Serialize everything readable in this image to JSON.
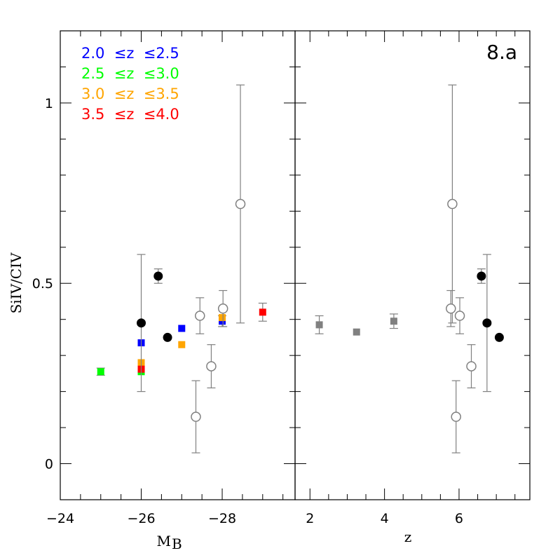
{
  "chart_data": [
    {
      "type": "scatter",
      "panel": "left",
      "title": "",
      "xlabel": "M",
      "xlabel_subscript": "B",
      "ylabel": "SiIV/CIV",
      "xlim": [
        -24,
        -29.8
      ],
      "ylim": [
        -0.1,
        1.2
      ],
      "x_ticks": [
        -24,
        -26,
        -28
      ],
      "x_tick_labels": [
        "−24",
        "−26",
        "−28"
      ],
      "y_ticks": [
        0,
        0.5,
        1
      ],
      "y_tick_labels": [
        "0",
        "0.5",
        "1"
      ],
      "legend": {
        "placement": "top-left",
        "entries": [
          {
            "label": "2.0  ≤z  ≤2.5",
            "color": "#0000ff"
          },
          {
            "label": "2.5  ≤z  ≤3.0",
            "color": "#00ff00"
          },
          {
            "label": "3.0  ≤z  ≤3.5",
            "color": "#ffa500"
          },
          {
            "label": "3.5  ≤z  ≤4.0",
            "color": "#ff0000"
          }
        ]
      },
      "series": [
        {
          "marker": "square",
          "color": "#0000ff",
          "points": [
            {
              "x": -26.0,
              "y": 0.335
            },
            {
              "x": -27.0,
              "y": 0.375
            },
            {
              "x": -28.0,
              "y": 0.395,
              "err": 0.015
            }
          ]
        },
        {
          "marker": "square",
          "color": "#00ff00",
          "points": [
            {
              "x": -25.0,
              "y": 0.255,
              "err": 0.01
            },
            {
              "x": -26.0,
              "y": 0.255
            }
          ]
        },
        {
          "marker": "square",
          "color": "#ffa500",
          "points": [
            {
              "x": -26.0,
              "y": 0.28
            },
            {
              "x": -27.0,
              "y": 0.33
            },
            {
              "x": -28.0,
              "y": 0.405
            }
          ]
        },
        {
          "marker": "square",
          "color": "#ff0000",
          "points": [
            {
              "x": -26.0,
              "y": 0.262
            },
            {
              "x": -29.0,
              "y": 0.42,
              "err": 0.025
            }
          ]
        },
        {
          "marker": "filled-circle",
          "color": "#000000",
          "points": [
            {
              "x": -26.0,
              "y": 0.39,
              "err_lo": 0.19,
              "err_hi": 0.19
            },
            {
              "x": -26.42,
              "y": 0.52,
              "err_lo": 0.02,
              "err_hi": 0.02
            },
            {
              "x": -26.65,
              "y": 0.35
            }
          ]
        },
        {
          "marker": "open-circle",
          "color": "#808080",
          "points": [
            {
              "x": -27.35,
              "y": 0.13,
              "err_lo": 0.1,
              "err_hi": 0.1
            },
            {
              "x": -27.45,
              "y": 0.41,
              "err_lo": 0.05,
              "err_hi": 0.05
            },
            {
              "x": -27.73,
              "y": 0.27,
              "err_lo": 0.06,
              "err_hi": 0.06
            },
            {
              "x": -28.02,
              "y": 0.43,
              "err_lo": 0.05,
              "err_hi": 0.05
            },
            {
              "x": -28.45,
              "y": 0.72,
              "err_lo": 0.33,
              "err_hi": 0.33
            }
          ]
        }
      ]
    },
    {
      "type": "scatter",
      "panel": "right",
      "title": "8.a",
      "xlabel": "z",
      "ylabel": "",
      "xlim": [
        1.6,
        7.9
      ],
      "ylim": [
        -0.1,
        1.2
      ],
      "x_ticks": [
        2,
        4,
        6
      ],
      "x_tick_labels": [
        "2",
        "4",
        "6"
      ],
      "series": [
        {
          "marker": "square",
          "color": "#808080",
          "points": [
            {
              "x": 2.25,
              "y": 0.385,
              "err": 0.025
            },
            {
              "x": 3.25,
              "y": 0.365
            },
            {
              "x": 4.25,
              "y": 0.395,
              "err": 0.02
            }
          ]
        },
        {
          "marker": "filled-circle",
          "color": "#000000",
          "points": [
            {
              "x": 6.6,
              "y": 0.52,
              "err_lo": 0.02,
              "err_hi": 0.02
            },
            {
              "x": 6.75,
              "y": 0.39,
              "err_lo": 0.19,
              "err_hi": 0.19
            },
            {
              "x": 7.08,
              "y": 0.35
            }
          ]
        },
        {
          "marker": "open-circle",
          "color": "#808080",
          "points": [
            {
              "x": 5.82,
              "y": 0.72,
              "err_lo": 0.33,
              "err_hi": 0.33
            },
            {
              "x": 5.78,
              "y": 0.43,
              "err_lo": 0.05,
              "err_hi": 0.05
            },
            {
              "x": 6.02,
              "y": 0.41,
              "err_lo": 0.05,
              "err_hi": 0.05
            },
            {
              "x": 5.92,
              "y": 0.13,
              "err_lo": 0.1,
              "err_hi": 0.1
            },
            {
              "x": 6.33,
              "y": 0.27,
              "err_lo": 0.06,
              "err_hi": 0.06
            }
          ]
        }
      ]
    }
  ]
}
